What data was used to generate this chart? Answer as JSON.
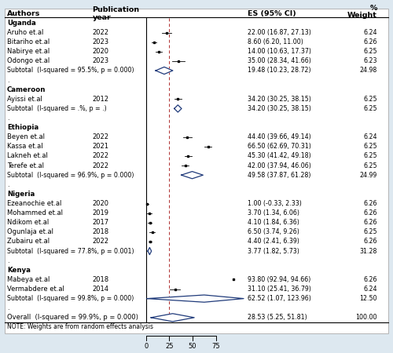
{
  "background_color": "#dde8f0",
  "plot_bg": "#ffffff",
  "header": {
    "authors": "Authors",
    "year": "Publication\nyear",
    "es": "ES (95% CI)",
    "weight": "%\nWeight"
  },
  "groups": [
    {
      "name": "Uganda",
      "studies": [
        {
          "author": "Aruho et.al",
          "year": "2022",
          "es": 22.0,
          "ci_lo": 16.87,
          "ci_hi": 27.13,
          "weight": "6.24"
        },
        {
          "author": "Bitariho et.al",
          "year": "2023",
          "es": 8.6,
          "ci_lo": 6.2,
          "ci_hi": 11.0,
          "weight": "6.26"
        },
        {
          "author": "Nabirye et.al",
          "year": "2020",
          "es": 14.0,
          "ci_lo": 10.63,
          "ci_hi": 17.37,
          "weight": "6.25"
        },
        {
          "author": "Odongo et.al",
          "year": "2023",
          "es": 35.0,
          "ci_lo": 28.34,
          "ci_hi": 41.66,
          "weight": "6.23"
        }
      ],
      "subtotal": {
        "es": 19.48,
        "ci_lo": 10.23,
        "ci_hi": 28.72,
        "weight": "24.98",
        "label": "Subtotal  (I-squared = 95.5%, p = 0.000)",
        "es_str": "19.48 (10.23, 28.72)",
        "wt_str": "24.98"
      }
    },
    {
      "name": "Cameroon",
      "studies": [
        {
          "author": "Ayissi et.al",
          "year": "2012",
          "es": 34.2,
          "ci_lo": 30.25,
          "ci_hi": 38.15,
          "weight": "6.25"
        }
      ],
      "subtotal": {
        "es": 34.2,
        "ci_lo": 30.25,
        "ci_hi": 38.15,
        "weight": "6.25",
        "label": "Subtotal  (I-squared = .%, p = .)",
        "es_str": "34.20 (30.25, 38.15)",
        "wt_str": "6.25"
      }
    },
    {
      "name": "Ethiopia",
      "studies": [
        {
          "author": "Beyen et.al",
          "year": "2022",
          "es": 44.4,
          "ci_lo": 39.66,
          "ci_hi": 49.14,
          "weight": "6.24"
        },
        {
          "author": "Kassa et.al",
          "year": "2021",
          "es": 66.5,
          "ci_lo": 62.69,
          "ci_hi": 70.31,
          "weight": "6.25"
        },
        {
          "author": "Lakneh et.al",
          "year": "2022",
          "es": 45.3,
          "ci_lo": 41.42,
          "ci_hi": 49.18,
          "weight": "6.25"
        },
        {
          "author": "Terefe et.al",
          "year": "2022",
          "es": 42.0,
          "ci_lo": 37.94,
          "ci_hi": 46.06,
          "weight": "6.25"
        }
      ],
      "subtotal": {
        "es": 49.58,
        "ci_lo": 37.87,
        "ci_hi": 61.28,
        "weight": "24.99",
        "label": "Subtotal  (I-squared = 96.9%, p = 0.000)",
        "es_str": "49.58 (37.87, 61.28)",
        "wt_str": "24.99"
      }
    },
    {
      "name": "Nigeria",
      "studies": [
        {
          "author": "Ezeanochie et.al",
          "year": "2020",
          "es": 1.0,
          "ci_lo": -0.33,
          "ci_hi": 2.33,
          "weight": "6.26"
        },
        {
          "author": "Mohammed et.al",
          "year": "2019",
          "es": 3.7,
          "ci_lo": 1.34,
          "ci_hi": 6.06,
          "weight": "6.26"
        },
        {
          "author": "Ndikom et.al",
          "year": "2017",
          "es": 4.1,
          "ci_lo": 1.84,
          "ci_hi": 6.36,
          "weight": "6.26"
        },
        {
          "author": "Ogunlaja et.al",
          "year": "2018",
          "es": 6.5,
          "ci_lo": 3.74,
          "ci_hi": 9.26,
          "weight": "6.25"
        },
        {
          "author": "Zubairu et.al",
          "year": "2022",
          "es": 4.4,
          "ci_lo": 2.41,
          "ci_hi": 6.39,
          "weight": "6.26"
        }
      ],
      "subtotal": {
        "es": 3.77,
        "ci_lo": 1.82,
        "ci_hi": 5.73,
        "weight": "31.28",
        "label": "Subtotal  (I-squared = 77.8%, p = 0.001)",
        "es_str": "3.77 (1.82, 5.73)",
        "wt_str": "31.28"
      }
    },
    {
      "name": "Kenya",
      "studies": [
        {
          "author": "Mabeya et.al",
          "year": "2018",
          "es": 93.8,
          "ci_lo": 92.94,
          "ci_hi": 94.66,
          "weight": "6.26"
        },
        {
          "author": "Vermabdere et.al",
          "year": "2014",
          "es": 31.1,
          "ci_lo": 25.41,
          "ci_hi": 36.79,
          "weight": "6.24"
        }
      ],
      "subtotal": {
        "es": 62.52,
        "ci_lo": 1.07,
        "ci_hi": 123.96,
        "weight": "12.50",
        "label": "Subtotal  (I-squared = 99.8%, p = 0.000)",
        "es_str": "62.52 (1.07, 123.96)",
        "wt_str": "12.50"
      }
    }
  ],
  "overall": {
    "es": 28.53,
    "ci_lo": 5.25,
    "ci_hi": 51.81,
    "weight": "100.00",
    "label": "Overall  (I-squared = 99.9%, p = 0.000)",
    "es_str": "28.53 (5.25, 51.81)",
    "wt_str": "100.00"
  },
  "note": "NOTE: Weights are from random effects analysis",
  "xmin": -5,
  "xmax": 105,
  "xticks": [
    0,
    25,
    50,
    75
  ],
  "ref_line": 25,
  "diamond_color": "#1f3a7a",
  "dot_color": "#000000",
  "ci_color": "#000000",
  "ref_line_color": "#b03030",
  "es_texts": {
    "Uganda": [
      "22.00 (16.87, 27.13)",
      "8.60 (6.20, 11.00)",
      "14.00 (10.63, 17.37)",
      "35.00 (28.34, 41.66)"
    ],
    "Cameroon": [
      "34.20 (30.25, 38.15)"
    ],
    "Ethiopia": [
      "44.40 (39.66, 49.14)",
      "66.50 (62.69, 70.31)",
      "45.30 (41.42, 49.18)",
      "42.00 (37.94, 46.06)"
    ],
    "Nigeria": [
      "1.00 (-0.33, 2.33)",
      "3.70 (1.34, 6.06)",
      "4.10 (1.84, 6.36)",
      "6.50 (3.74, 9.26)",
      "4.40 (2.41, 6.39)"
    ],
    "Kenya": [
      "93.80 (92.94, 94.66)",
      "31.10 (25.41, 36.79)"
    ]
  }
}
